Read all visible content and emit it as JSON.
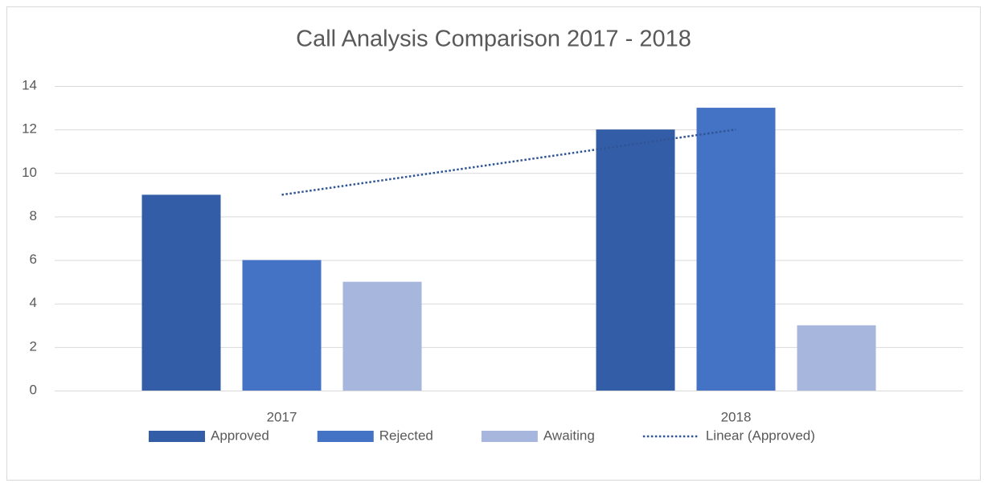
{
  "chart_data": {
    "type": "bar",
    "title": "Call Analysis Comparison 2017 - 2018",
    "categories": [
      "2017",
      "2018"
    ],
    "series": [
      {
        "name": "Approved",
        "color": "#335da6",
        "values": [
          9,
          12
        ]
      },
      {
        "name": "Rejected",
        "color": "#4472c4",
        "values": [
          6,
          13
        ]
      },
      {
        "name": "Awaiting",
        "color": "#a7b6dc",
        "values": [
          5,
          3
        ]
      }
    ],
    "trendline": {
      "name": "Linear (Approved)",
      "type": "linear",
      "series": "Approved",
      "color": "#2f5597"
    },
    "ylim": [
      0,
      14
    ],
    "yticks": [
      0,
      2,
      4,
      6,
      8,
      10,
      12,
      14
    ],
    "grid": true,
    "legend": "bottom"
  }
}
